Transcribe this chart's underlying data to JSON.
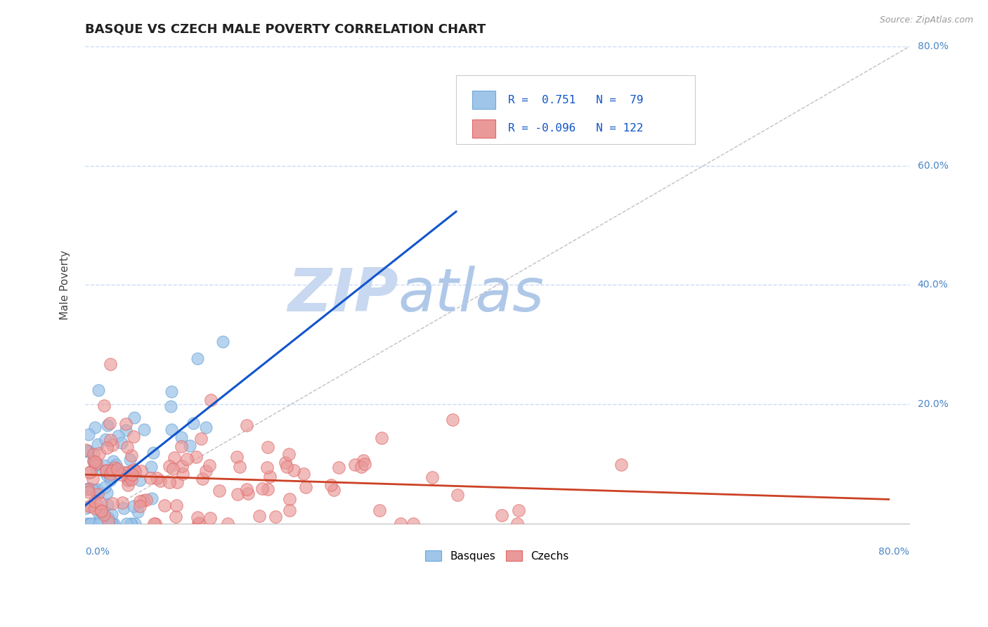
{
  "title": "BASQUE VS CZECH MALE POVERTY CORRELATION CHART",
  "source": "Source: ZipAtlas.com",
  "ylabel": "Male Poverty",
  "ylim": [
    0,
    0.8
  ],
  "xlim": [
    0,
    0.8
  ],
  "basque_R": 0.751,
  "basque_N": 79,
  "czech_R": -0.096,
  "czech_N": 122,
  "basque_color": "#6fa8dc",
  "basque_fill": "#9fc5e8",
  "czech_color": "#e06666",
  "czech_fill": "#ea9999",
  "trend_basque_color": "#1155cc",
  "trend_czech_color": "#cc4125",
  "watermark_zip_color": "#d6e4f7",
  "watermark_atlas_color": "#b8cfe8",
  "background_color": "#ffffff",
  "grid_color": "#c9daf8",
  "title_color": "#212121",
  "source_color": "#999999",
  "tick_color": "#4a86c8"
}
